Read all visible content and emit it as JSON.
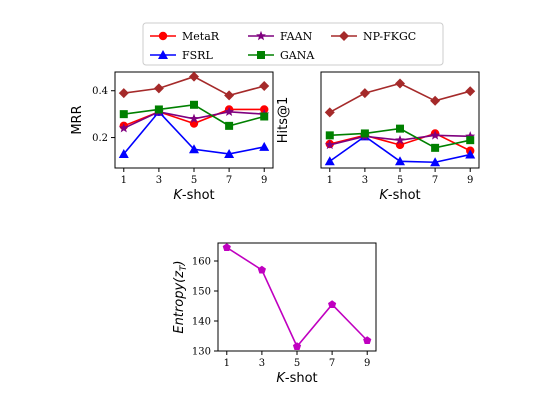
{
  "legend": {
    "entries": [
      {
        "name": "MetaR",
        "color": "#ff0000",
        "marker": "circle"
      },
      {
        "name": "FSRL",
        "color": "#0000ff",
        "marker": "triangle"
      },
      {
        "name": "FAAN",
        "color": "#7f007f",
        "marker": "star"
      },
      {
        "name": "GANA",
        "color": "#008000",
        "marker": "square"
      },
      {
        "name": "NP-FKGC",
        "color": "#a52a2a",
        "marker": "diamond"
      }
    ]
  },
  "chart_data": [
    {
      "type": "line",
      "xlabel_italic": "K",
      "xlabel_rest": "-shot",
      "ylabel": "MRR",
      "x": [
        1,
        3,
        5,
        7,
        9
      ],
      "xticks": [
        "1",
        "3",
        "5",
        "7",
        "9"
      ],
      "yticks": [
        "0.2",
        "0.4"
      ],
      "ytick_values": [
        0.2,
        0.4
      ],
      "xlim": [
        0.5,
        9.5
      ],
      "ylim": [
        0.07,
        0.48
      ],
      "series": [
        {
          "name": "MetaR",
          "values": [
            0.25,
            0.31,
            0.26,
            0.32,
            0.32
          ]
        },
        {
          "name": "FSRL",
          "values": [
            0.13,
            0.31,
            0.15,
            0.13,
            0.16
          ]
        },
        {
          "name": "FAAN",
          "values": [
            0.24,
            0.31,
            0.28,
            0.31,
            0.3
          ]
        },
        {
          "name": "GANA",
          "values": [
            0.3,
            0.32,
            0.34,
            0.25,
            0.29
          ]
        },
        {
          "name": "NP-FKGC",
          "values": [
            0.39,
            0.41,
            0.46,
            0.38,
            0.42
          ]
        }
      ]
    },
    {
      "type": "line",
      "xlabel_italic": "K",
      "xlabel_rest": "-shot",
      "ylabel": "Hits@1",
      "x": [
        1,
        3,
        5,
        7,
        9
      ],
      "xticks": [
        "1",
        "3",
        "5",
        "7",
        "9"
      ],
      "yticks": [],
      "ytick_values": [],
      "xlim": [
        0.5,
        9.5
      ],
      "ylim": [
        0.0,
        1.0
      ],
      "series": [
        {
          "name": "MetaR",
          "values": [
            0.25,
            0.34,
            0.24,
            0.36,
            0.18
          ]
        },
        {
          "name": "FSRL",
          "values": [
            0.07,
            0.33,
            0.07,
            0.06,
            0.14
          ]
        },
        {
          "name": "FAAN",
          "values": [
            0.24,
            0.33,
            0.29,
            0.34,
            0.33
          ]
        },
        {
          "name": "GANA",
          "values": [
            0.34,
            0.36,
            0.41,
            0.21,
            0.29
          ]
        },
        {
          "name": "NP-FKGC",
          "values": [
            0.58,
            0.78,
            0.88,
            0.7,
            0.8
          ]
        }
      ]
    },
    {
      "type": "line",
      "xlabel_italic": "K",
      "xlabel_rest": "-shot",
      "ylabel_prefix": "Entropy(z",
      "ylabel_sub": "T",
      "ylabel_suffix": ")",
      "x": [
        1,
        3,
        5,
        7,
        9
      ],
      "xticks": [
        "1",
        "3",
        "5",
        "7",
        "9"
      ],
      "yticks": [
        "130",
        "140",
        "150",
        "160"
      ],
      "ytick_values": [
        130,
        140,
        150,
        160
      ],
      "xlim": [
        0.5,
        9.5
      ],
      "ylim": [
        130,
        166
      ],
      "series": [
        {
          "name": "",
          "color": "#c000c0",
          "marker": "pentagon",
          "values": [
            164.5,
            157.0,
            131.5,
            145.5,
            133.5
          ]
        }
      ]
    }
  ]
}
